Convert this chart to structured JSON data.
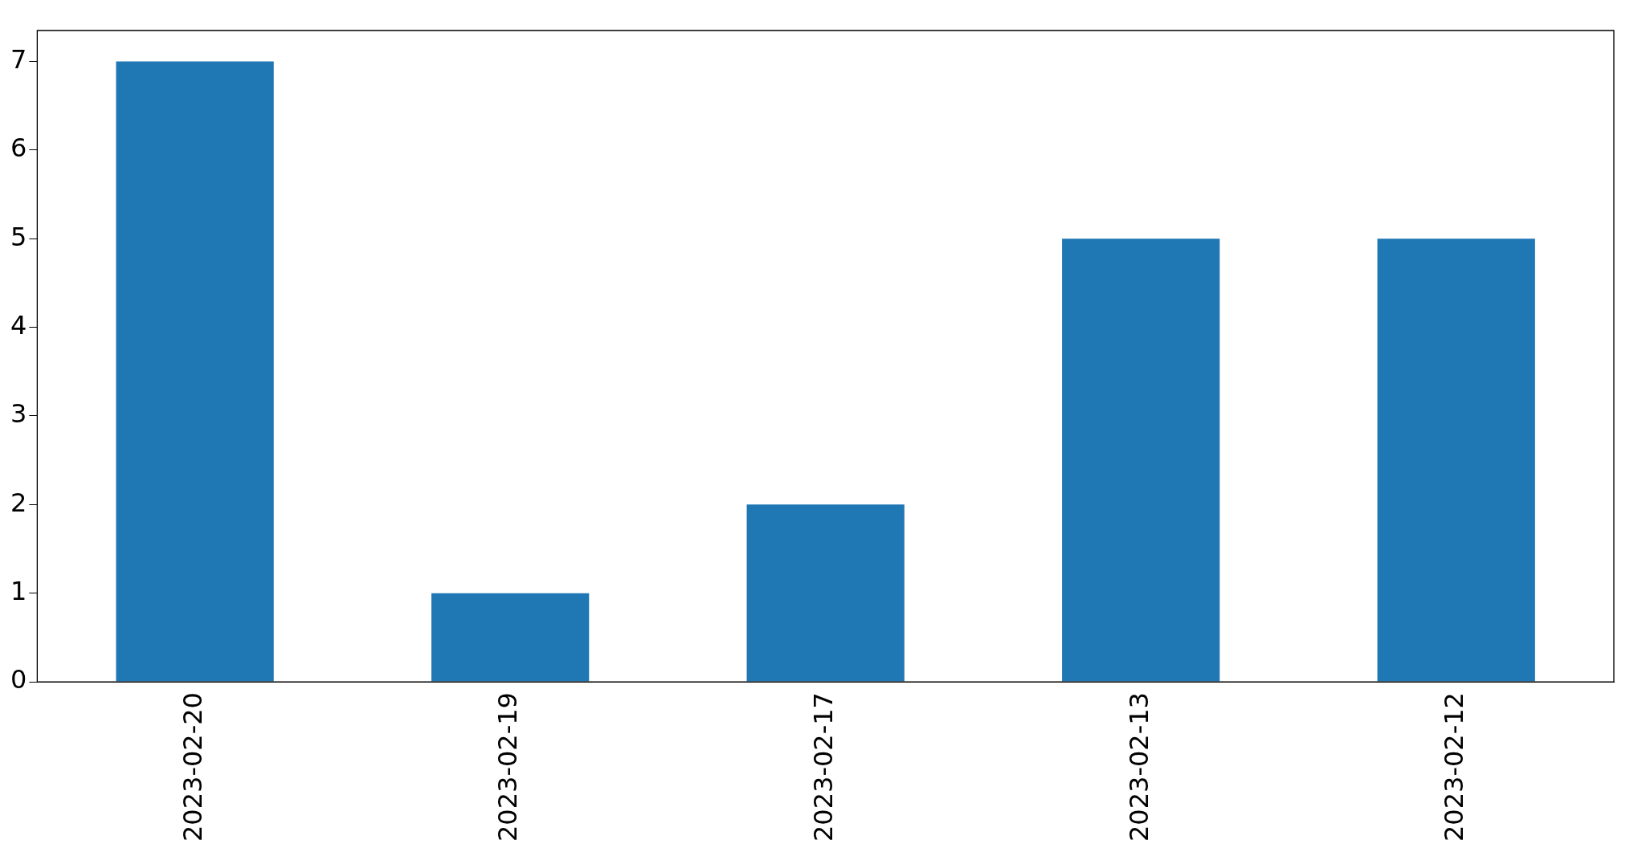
{
  "chart_data": {
    "type": "bar",
    "categories": [
      "2023-02-20",
      "2023-02-19",
      "2023-02-17",
      "2023-02-13",
      "2023-02-12"
    ],
    "values": [
      7,
      1,
      2,
      5,
      5
    ],
    "color": "#1f77b4",
    "ylim": [
      0,
      7.35
    ],
    "yticks": [
      0,
      1,
      2,
      3,
      4,
      5,
      6,
      7
    ],
    "grid": false,
    "legend": false
  }
}
